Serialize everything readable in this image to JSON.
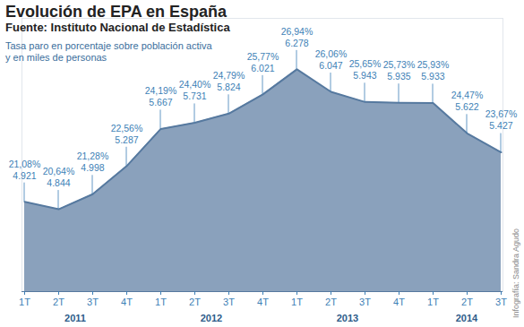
{
  "chart_data": {
    "type": "area",
    "title": "Evolución de EPA en España",
    "subtitle": "Fuente: Instituto Nacional de Estadística",
    "annotations": [
      "Tasa paro en porcentaje sobre población activa",
      "y en miles de personas"
    ],
    "credit": "Infografía: Sandra Agudo",
    "categories": [
      "1T",
      "2T",
      "3T",
      "4T",
      "1T",
      "2T",
      "3T",
      "4T",
      "1T",
      "2T",
      "3T",
      "4T",
      "1T",
      "2T",
      "3T"
    ],
    "year_labels": [
      "2011",
      "2012",
      "2013",
      "2014"
    ],
    "year_spans": [
      4,
      4,
      4,
      3
    ],
    "values": [
      4921,
      4844,
      4998,
      5287,
      5667,
      5731,
      5824,
      6021,
      6278,
      6047,
      5943,
      5935,
      5933,
      5622,
      5427
    ],
    "value_labels": [
      "4.921",
      "4.844",
      "4.998",
      "5.287",
      "5.667",
      "5.731",
      "5.824",
      "6.021",
      "6.278",
      "6.047",
      "5.943",
      "5.935",
      "5.933",
      "5.622",
      "5.427"
    ],
    "rate_labels": [
      "21,08%",
      "20,64%",
      "21,28%",
      "22,56%",
      "24,19%",
      "24,40%",
      "24,79%",
      "25,77%",
      "26,94%",
      "26,06%",
      "25,65%",
      "25,73%",
      "25,93%",
      "24,47%",
      "23,67%"
    ],
    "color": "#7d97b5",
    "ylim": [
      4000,
      6800
    ],
    "yticks": [],
    "tick_labels": "x",
    "data_labels": true
  }
}
